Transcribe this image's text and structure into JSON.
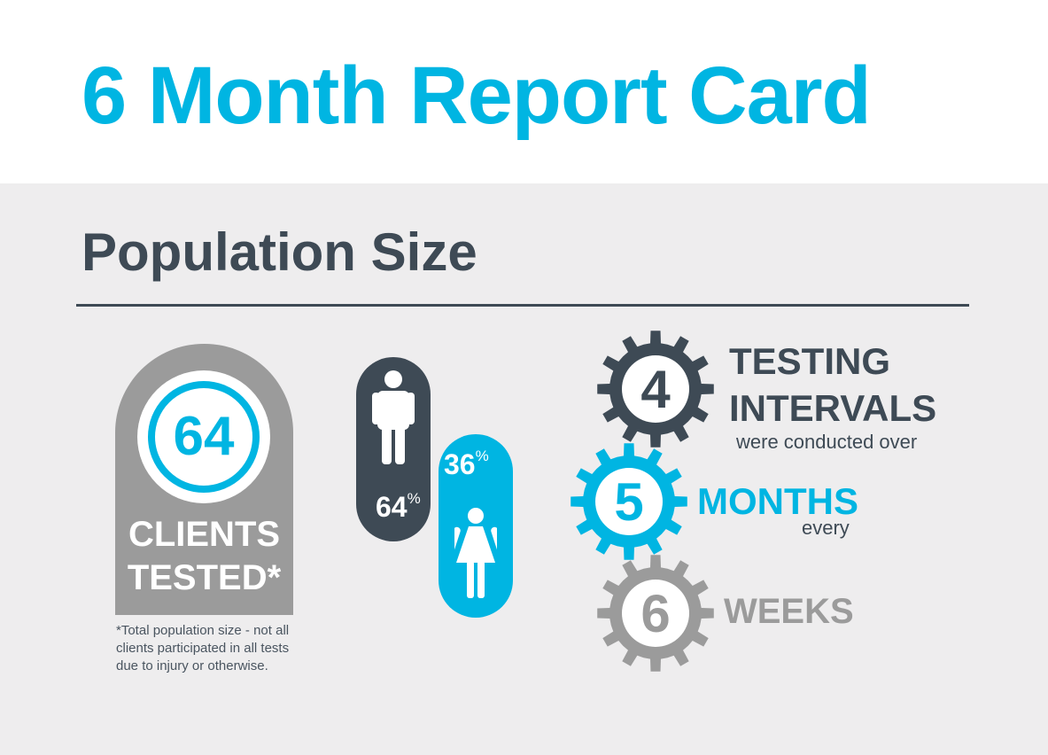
{
  "colors": {
    "brand_blue": "#00b5e2",
    "dark_slate": "#3e4a55",
    "mid_gray": "#9b9b9b",
    "panel_bg": "#eeedee"
  },
  "header": {
    "title": "6 Month Report Card"
  },
  "section": {
    "title": "Population Size"
  },
  "clients": {
    "count": "64",
    "line1": "CLIENTS",
    "line2": "TESTED*",
    "footnote": "*Total population size - not all clients participated in all tests due to injury or otherwise."
  },
  "gender": {
    "male": {
      "value": "64",
      "unit": "%",
      "icon": "male-icon",
      "share": 0.64
    },
    "female": {
      "value": "36",
      "unit": "%",
      "icon": "female-icon",
      "share": 0.36
    }
  },
  "schedule": {
    "intervals": {
      "number": "4",
      "line1": "TESTING",
      "line2": "INTERVALS",
      "caption": "were conducted over",
      "icon": "gear-icon"
    },
    "months": {
      "number": "5",
      "label": "MONTHS",
      "caption": "every",
      "icon": "gear-icon"
    },
    "weeks": {
      "number": "6",
      "label": "WEEKS",
      "icon": "gear-icon"
    }
  }
}
